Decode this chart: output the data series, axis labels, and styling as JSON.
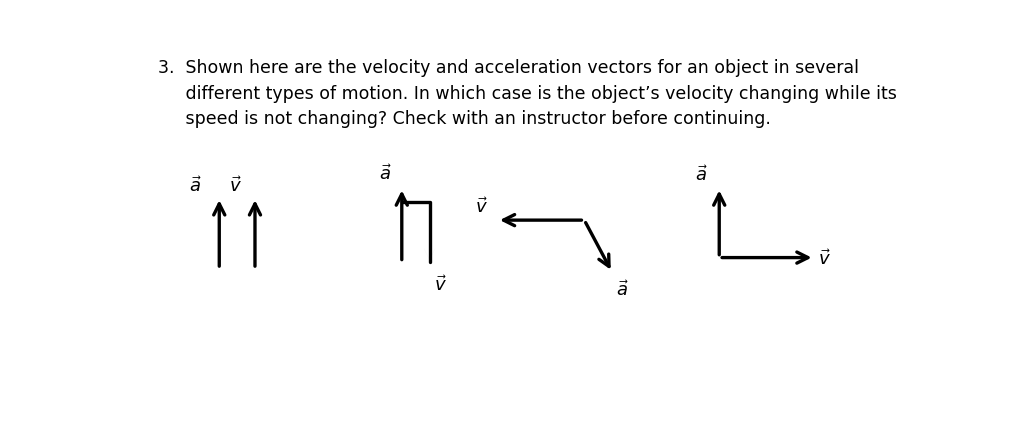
{
  "background_color": "#ffffff",
  "text_color": "#000000",
  "question": "3.  Shown here are the velocity and acceleration vectors for an object in several\n     different types of motion. In which case is the object’s velocity changing while its\n     speed is not changing? Check with an instructor before continuing.",
  "question_fontsize": 12.5,
  "label_fontsize": 13,
  "arrow_lw": 2.4,
  "arrow_mutation_scale": 20
}
